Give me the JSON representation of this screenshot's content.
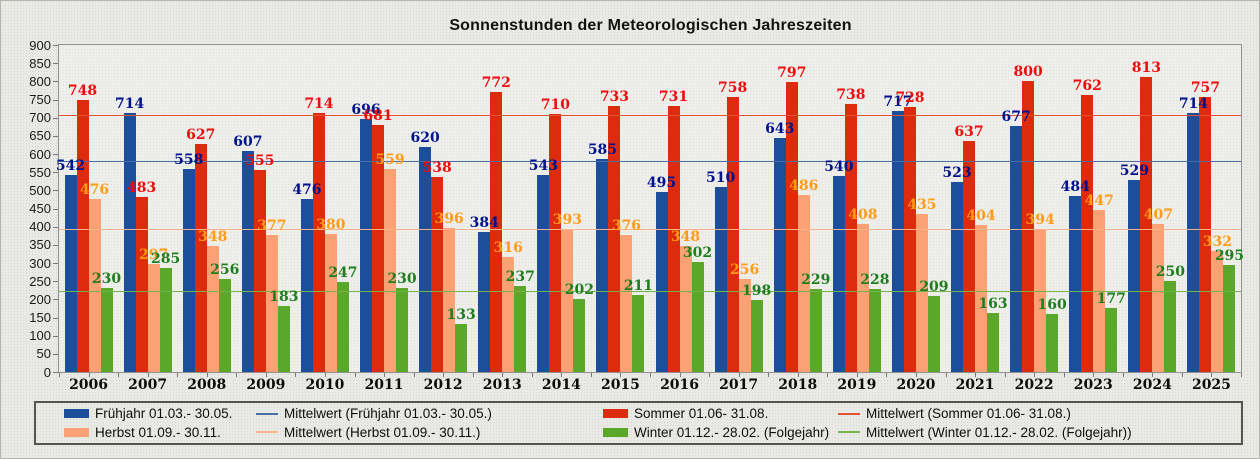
{
  "chart_data": {
    "type": "bar",
    "title": "Sonnenstunden der Meteorologischen Jahreszeiten",
    "categories": [
      "2006",
      "2007",
      "2008",
      "2009",
      "2010",
      "2011",
      "2012",
      "2013",
      "2014",
      "2015",
      "2016",
      "2017",
      "2018",
      "2019",
      "2020",
      "2021",
      "2022",
      "2023",
      "2024",
      "2025"
    ],
    "series": [
      {
        "name": "Frühjahr 01.03.- 30.05.",
        "bar_color": "#1b4f9c",
        "label_color": "#00128b",
        "values": [
          542,
          714,
          558,
          607,
          476,
          696,
          620,
          384,
          543,
          585,
          495,
          510,
          643,
          540,
          717,
          523,
          677,
          484,
          529,
          714
        ]
      },
      {
        "name": "Sommer 01.06- 31.08.",
        "bar_color": "#dc2b0d",
        "label_color": "#ee0c0c",
        "values": [
          748,
          483,
          627,
          555,
          714,
          681,
          538,
          772,
          710,
          733,
          731,
          758,
          797,
          738,
          728,
          637,
          800,
          762,
          813,
          757
        ]
      },
      {
        "name": "Herbst 01.09.- 30.11.",
        "bar_color": "#fba173",
        "label_color": "#ff9b17",
        "values": [
          476,
          297,
          348,
          377,
          380,
          559,
          396,
          316,
          393,
          376,
          348,
          256,
          486,
          408,
          435,
          404,
          394,
          447,
          407,
          332
        ]
      },
      {
        "name": "Winter 01.12.- 28.02. (Folgejahr)",
        "bar_color": "#5ba729",
        "label_color": "#1e7d1e",
        "values": [
          230,
          285,
          256,
          183,
          247,
          230,
          133,
          237,
          202,
          211,
          302,
          198,
          229,
          228,
          209,
          163,
          160,
          177,
          250,
          295
        ]
      }
    ],
    "mean_lines": [
      {
        "name": "Mittelwert (Frühjahr 01.03.- 30.05.)",
        "value": 578,
        "color": "#4a6fa5"
      },
      {
        "name": "Mittelwert (Sommer 01.06- 31.08.)",
        "value": 704,
        "color": "#e25335"
      },
      {
        "name": "Mittelwert (Herbst 01.09.- 30.11.)",
        "value": 392,
        "color": "#f9b28c"
      },
      {
        "name": "Mittelwert (Winter 01.12.- 28.02. (Folgejahr))",
        "value": 221,
        "color": "#74b44a"
      }
    ],
    "ylim": [
      0,
      900
    ],
    "ytick_step": 50,
    "grid": false,
    "legend_position": "bottom",
    "legend_order": [
      "series-0",
      "mean-0",
      "series-1",
      "mean-1",
      "series-2",
      "mean-2",
      "series-3",
      "mean-3"
    ]
  }
}
